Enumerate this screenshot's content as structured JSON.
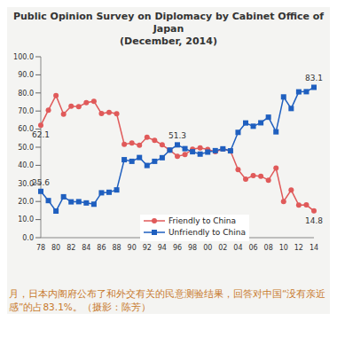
{
  "chart_data": {
    "type": "line",
    "title": "Public Opinion Survey on Diplomacy by Cabinet Office of Japan",
    "subtitle": "(December, 2014)",
    "categories": [
      "78",
      null,
      "80",
      null,
      "82",
      null,
      "84",
      null,
      "86",
      null,
      "88",
      null,
      "90",
      null,
      "92",
      null,
      "94",
      null,
      "96",
      null,
      "98",
      null,
      "00",
      null,
      "02",
      null,
      "04",
      null,
      "06",
      null,
      "08",
      null,
      "10",
      null,
      "12",
      null,
      "14"
    ],
    "series": [
      {
        "name": "Friendly to China",
        "color": "#e05a5a",
        "marker": "circle",
        "values": [
          62.1,
          70.5,
          78.6,
          68.3,
          72.7,
          72.4,
          74.6,
          75.4,
          68.6,
          69.3,
          68.5,
          51.6,
          52.3,
          51.1,
          55.5,
          53.8,
          51.3,
          48.4,
          45.0,
          45.9,
          48.9,
          49.6,
          48.8,
          47.5,
          49.0,
          47.9,
          37.6,
          32.4,
          34.3,
          34.0,
          31.8,
          38.5,
          20.0,
          26.3,
          18.0,
          18.1,
          14.8
        ]
      },
      {
        "name": "Unfriendly to China",
        "color": "#1f5fbf",
        "marker": "square",
        "values": [
          25.6,
          20.5,
          14.7,
          22.6,
          19.8,
          19.9,
          19.2,
          18.5,
          24.8,
          25.1,
          26.4,
          43.1,
          42.2,
          44.3,
          39.9,
          42.2,
          44.2,
          48.4,
          51.3,
          49.2,
          47.5,
          46.2,
          47.3,
          48.1,
          49.1,
          48.0,
          58.2,
          63.4,
          61.6,
          63.5,
          66.6,
          58.5,
          77.8,
          71.4,
          80.6,
          80.7,
          83.1
        ]
      }
    ],
    "ylim": [
      0,
      100
    ],
    "yticks": [
      {
        "value": 0,
        "label": "0.0"
      },
      {
        "value": 10,
        "label": "10.0"
      },
      {
        "value": 20,
        "label": "20.0"
      },
      {
        "value": 30,
        "label": "30.0"
      },
      {
        "value": 40,
        "label": "40.0"
      },
      {
        "value": 50,
        "label": "50.0"
      },
      {
        "value": 60,
        "label": "60.0"
      },
      {
        "value": 70,
        "label": "70.0"
      },
      {
        "value": 80,
        "label": "80.0"
      },
      {
        "value": 90,
        "label": "90.0"
      },
      {
        "value": 100,
        "label": "100.0"
      }
    ],
    "grid": false,
    "legend": "lower center",
    "annotations": [
      {
        "series": "Friendly to China",
        "x": "78",
        "text": "62.1"
      },
      {
        "series": "Unfriendly to China",
        "x": "78",
        "text": "25.6"
      },
      {
        "series": "Unfriendly to China",
        "x": "96",
        "text": "51.3"
      },
      {
        "series": "Unfriendly to China",
        "x": "14",
        "text": "83.1"
      },
      {
        "series": "Friendly to China",
        "x": "14",
        "text": "14.8"
      }
    ],
    "caption": "月，日本内阁府公布了和外交有关的民意测验结果，回答对中国“没有亲近感”的占83.1%。（摄影：陈芳）"
  }
}
